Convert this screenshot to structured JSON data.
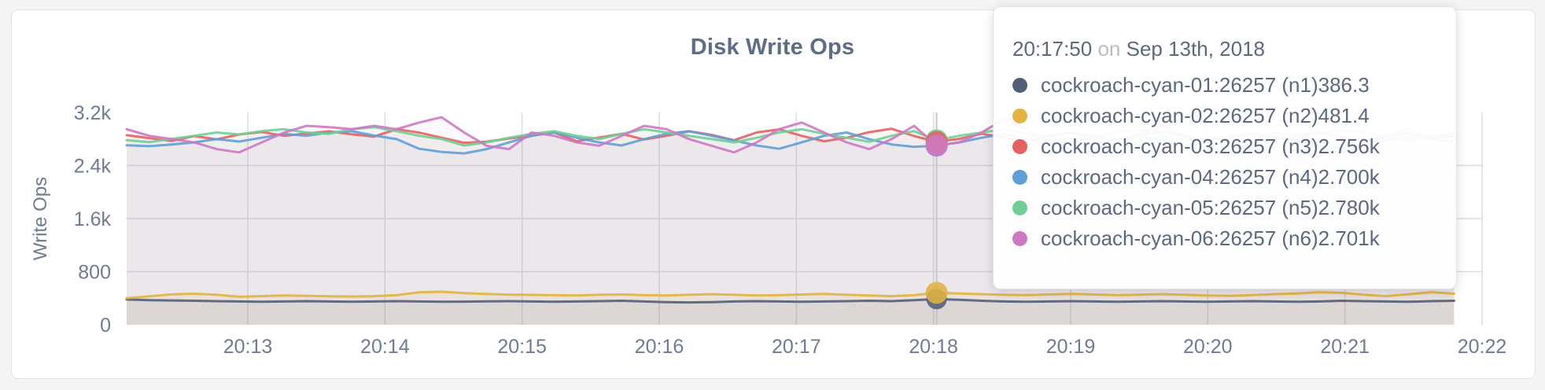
{
  "page": {
    "background": "#f4f4f5"
  },
  "card": {
    "background": "#ffffff",
    "border_color": "#e4e4e6"
  },
  "chart": {
    "title": "Disk Write Ops",
    "y_axis_label": "Write Ops"
  },
  "tooltip": {
    "time": "20:17:50",
    "connector": "on",
    "date": "Sep 13th, 2018",
    "rows": [
      {
        "label": "cockroach-cyan-01:26257 (n1)",
        "value": "386.3",
        "color": "#545d78"
      },
      {
        "label": "cockroach-cyan-02:26257 (n2)",
        "value": "481.4",
        "color": "#e2b340"
      },
      {
        "label": "cockroach-cyan-03:26257 (n3)",
        "value": "2.756k",
        "color": "#e5615f"
      },
      {
        "label": "cockroach-cyan-04:26257 (n4)",
        "value": "2.700k",
        "color": "#5f9ed7"
      },
      {
        "label": "cockroach-cyan-05:26257 (n5)",
        "value": "2.780k",
        "color": "#6ecf93"
      },
      {
        "label": "cockroach-cyan-06:26257 (n6)",
        "value": "2.701k",
        "color": "#ce78c3"
      }
    ]
  },
  "chart_data": {
    "type": "line",
    "title": "Disk Write Ops",
    "xlabel": "",
    "ylabel": "Write Ops",
    "ylim": [
      0,
      3200
    ],
    "grid": true,
    "legend_position": "tooltip",
    "y_ticks": [
      {
        "value": 0,
        "label": "0"
      },
      {
        "value": 800,
        "label": "800"
      },
      {
        "value": 1600,
        "label": "1.6k"
      },
      {
        "value": 2400,
        "label": "2.4k"
      },
      {
        "value": 3200,
        "label": "3.2k"
      }
    ],
    "x_ticks": [
      "20:13",
      "20:14",
      "20:15",
      "20:16",
      "20:17",
      "20:18",
      "20:19",
      "20:20",
      "20:21",
      "20:22"
    ],
    "sample_interval_seconds": 10,
    "hover_index": 36,
    "hover_time": "20:17:50",
    "series": [
      {
        "name": "cockroach-cyan-01:26257 (n1)",
        "color": "#545d78",
        "hover_value": 386.3,
        "values": [
          381,
          371,
          366,
          361,
          356,
          351,
          346,
          351,
          356,
          351,
          346,
          351,
          356,
          351,
          346,
          349,
          353,
          356,
          351,
          346,
          351,
          356,
          361,
          351,
          341,
          336,
          341,
          351,
          356,
          351,
          346,
          351,
          356,
          361,
          356,
          371,
          386.3,
          376,
          361,
          351,
          346,
          351,
          356,
          351,
          346,
          351,
          356,
          351,
          346,
          351,
          356,
          351,
          346,
          351,
          361,
          356,
          351,
          346,
          356,
          361
        ]
      },
      {
        "name": "cockroach-cyan-02:26257 (n2)",
        "color": "#e2b340",
        "hover_value": 481.4,
        "values": [
          402,
          428,
          458,
          468,
          452,
          422,
          432,
          442,
          436,
          430,
          426,
          432,
          446,
          488,
          498,
          478,
          464,
          454,
          450,
          446,
          441,
          451,
          456,
          446,
          441,
          451,
          461,
          451,
          441,
          446,
          456,
          466,
          451,
          441,
          431,
          446,
          481.4,
          471,
          461,
          451,
          446,
          456,
          466,
          456,
          446,
          451,
          461,
          451,
          441,
          436,
          446,
          461,
          471,
          491,
          481,
          451,
          431,
          461,
          491,
          468
        ]
      },
      {
        "name": "cockroach-cyan-03:26257 (n3)",
        "color": "#e5615f",
        "hover_value": 2756,
        "values": [
          2858,
          2812,
          2770,
          2845,
          2795,
          2868,
          2905,
          2848,
          2882,
          2915,
          2872,
          2836,
          2948,
          2896,
          2818,
          2742,
          2760,
          2806,
          2852,
          2898,
          2765,
          2822,
          2878,
          2792,
          2848,
          2915,
          2862,
          2782,
          2898,
          2945,
          2848,
          2765,
          2818,
          2902,
          2955,
          2845,
          2756,
          2802,
          2878,
          2825,
          2762,
          2848,
          2898,
          2832,
          2778,
          2858,
          2918,
          2848,
          2792,
          2832,
          2878,
          2802,
          2848,
          2898,
          2822,
          2772,
          2842,
          2888,
          2828,
          2840
        ]
      },
      {
        "name": "cockroach-cyan-04:26257 (n4)",
        "color": "#5f9ed7",
        "hover_value": 2700,
        "values": [
          2705,
          2692,
          2718,
          2748,
          2798,
          2762,
          2818,
          2878,
          2848,
          2898,
          2918,
          2852,
          2798,
          2652,
          2605,
          2582,
          2648,
          2748,
          2848,
          2898,
          2818,
          2748,
          2702,
          2798,
          2878,
          2918,
          2848,
          2778,
          2702,
          2652,
          2748,
          2848,
          2898,
          2798,
          2718,
          2682,
          2700,
          2748,
          2818,
          2878,
          2798,
          2702,
          2652,
          2718,
          2798,
          2848,
          2778,
          2702,
          2748,
          2818,
          2878,
          2818,
          2758,
          2702,
          2652,
          2702,
          2778,
          2848,
          2798,
          2895
        ]
      },
      {
        "name": "cockroach-cyan-05:26257 (n5)",
        "color": "#6ecf93",
        "hover_value": 2780,
        "values": [
          2782,
          2752,
          2802,
          2848,
          2898,
          2868,
          2918,
          2948,
          2898,
          2878,
          2948,
          2978,
          2918,
          2848,
          2798,
          2702,
          2748,
          2818,
          2878,
          2918,
          2848,
          2798,
          2878,
          2948,
          2898,
          2848,
          2798,
          2748,
          2818,
          2898,
          2948,
          2878,
          2818,
          2758,
          2848,
          2918,
          2780,
          2848,
          2898,
          2948,
          2878,
          2798,
          2748,
          2818,
          2898,
          2938,
          2858,
          2798,
          2758,
          2838,
          2898,
          2848,
          2798,
          2878,
          2938,
          2898,
          2828,
          2778,
          2848,
          2880
        ]
      },
      {
        "name": "cockroach-cyan-06:26257 (n6)",
        "color": "#ce78c3",
        "hover_value": 2701,
        "values": [
          2948,
          2848,
          2798,
          2748,
          2648,
          2598,
          2748,
          2898,
          2998,
          2978,
          2948,
          2998,
          2948,
          3048,
          3128,
          2898,
          2698,
          2648,
          2898,
          2848,
          2748,
          2698,
          2848,
          2998,
          2948,
          2798,
          2698,
          2598,
          2748,
          2948,
          3048,
          2898,
          2748,
          2648,
          2798,
          2998,
          2701,
          2748,
          2898,
          3098,
          2948,
          2748,
          2648,
          2548,
          2698,
          2898,
          2998,
          2848,
          2698,
          2598,
          2748,
          2898,
          2848,
          2698,
          2598,
          2698,
          2848,
          2948,
          2798,
          2760
        ]
      }
    ]
  }
}
